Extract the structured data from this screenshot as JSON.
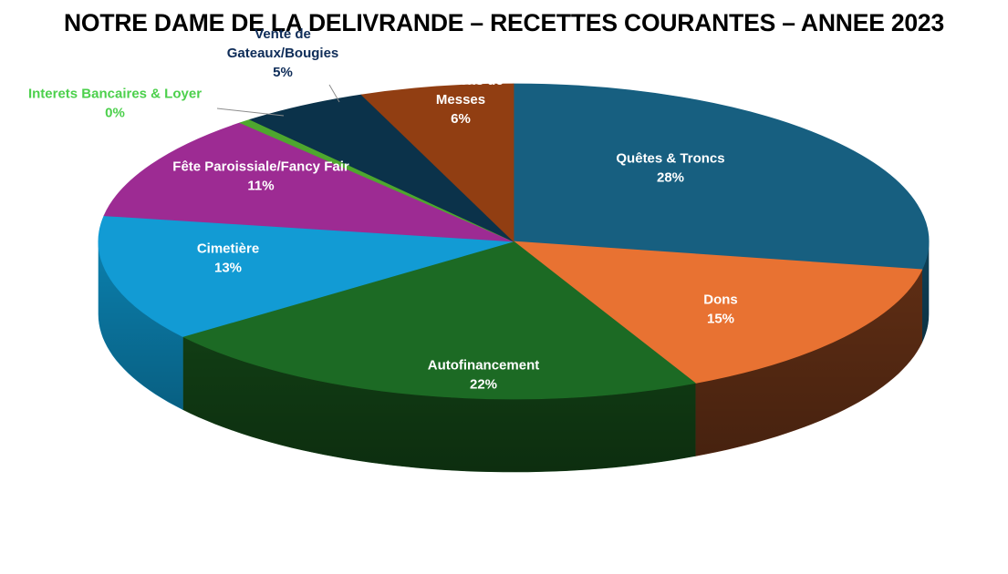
{
  "chart_data": {
    "type": "pie",
    "style": "3d",
    "title": "NOTRE DAME DE LA DELIVRANDE – RECETTES COURANTES – ANNEE 2023",
    "slices": [
      {
        "name": "Quêtes & Troncs",
        "label_lines": [
          "Quêtes & Troncs",
          "28%"
        ],
        "value": 28,
        "color": "#175F80",
        "side_color": "#0F4259",
        "label_color": "#FFFFFF"
      },
      {
        "name": "Dons",
        "label_lines": [
          "Dons",
          "15%"
        ],
        "value": 15,
        "color": "#E87232",
        "side_color": "#5E2D14",
        "label_color": "#FFFFFF"
      },
      {
        "name": "Autofinancement",
        "label_lines": [
          "Autofinancement",
          "22%"
        ],
        "value": 22,
        "color": "#1C6A24",
        "side_color": "#113D14",
        "label_color": "#FFFFFF"
      },
      {
        "name": "Cimetière",
        "label_lines": [
          "Cimetière",
          "13%"
        ],
        "value": 13,
        "color": "#129BD4",
        "side_color": "#0B7FAD",
        "label_color": "#FFFFFF"
      },
      {
        "name": "Fête Paroissiale/Fancy Fair",
        "label_lines": [
          "Fête Paroissiale/Fancy Fair",
          "11%"
        ],
        "value": 11,
        "color": "#9D2B93",
        "side_color": "#6A1C63",
        "label_color": "#FFFFFF"
      },
      {
        "name": "Interets Bancaires & Loyer",
        "label_lines": [
          "Interets Bancaires & Loyer",
          "0%"
        ],
        "value": 0.5,
        "color": "#4EA72E",
        "side_color": "#3A7D22",
        "label_color": "#4CD04C"
      },
      {
        "name": "Vente de Gateaux/Bougies",
        "label_lines": [
          "Vente de",
          "Gateaux/Bougies",
          "5%"
        ],
        "value": 5,
        "color": "#0B324A",
        "side_color": "#082233",
        "label_color": "#0E2C58"
      },
      {
        "name": "Intentions de Messes",
        "label_lines": [
          "Intentions de",
          "Messes",
          "6%"
        ],
        "value": 6,
        "color": "#913E12",
        "side_color": "#5E2809",
        "label_color": "#FFFFFF"
      }
    ]
  }
}
